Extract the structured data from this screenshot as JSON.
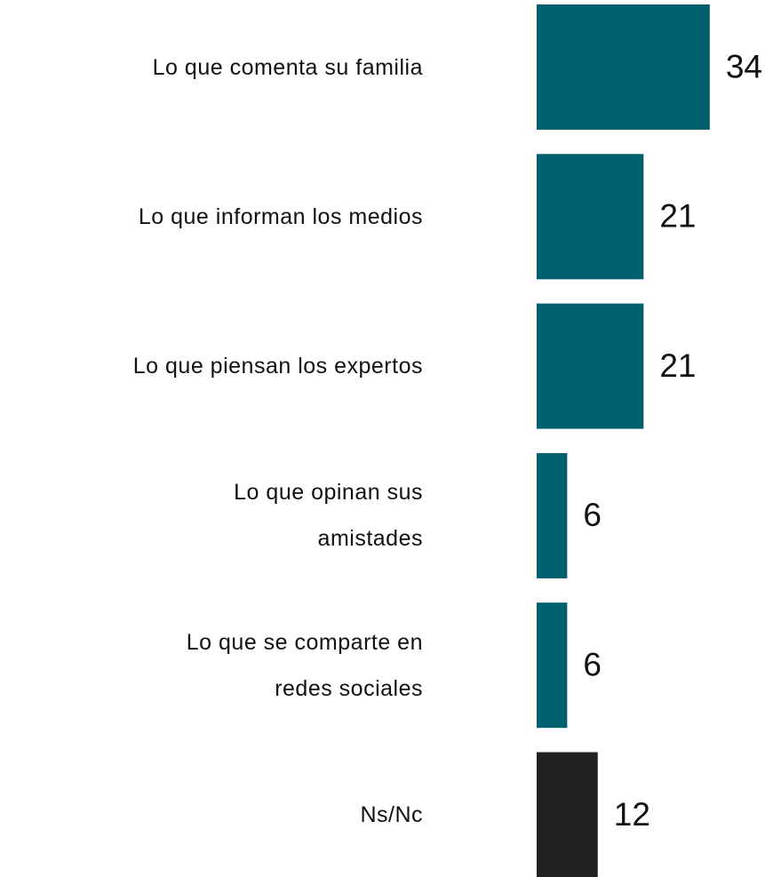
{
  "chart_data": {
    "type": "bar",
    "orientation": "horizontal",
    "categories": [
      "Lo que comenta su familia",
      "Lo que informan los medios",
      "Lo que piensan los expertos",
      "Lo que opinan sus\namistades",
      "Lo que se comparte en\nredes sociales",
      "Ns/Nc"
    ],
    "values": [
      34,
      21,
      21,
      6,
      6,
      12
    ],
    "colors": [
      "#005f6e",
      "#005f6e",
      "#005f6e",
      "#005f6e",
      "#005f6e",
      "#222222"
    ]
  }
}
